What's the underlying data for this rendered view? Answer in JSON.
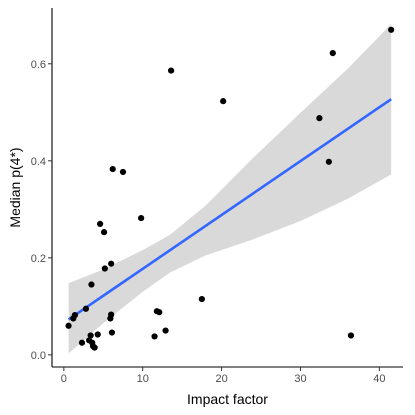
{
  "chart_data": {
    "type": "scatter",
    "title": "",
    "xlabel": "Impact factor",
    "ylabel": "Median p(4*)",
    "xlim": [
      -1.5,
      43
    ],
    "ylim": [
      -0.025,
      0.715
    ],
    "x_ticks": [
      0,
      10,
      20,
      30,
      40
    ],
    "x_tick_labels": [
      "0",
      "10",
      "20",
      "30",
      "40"
    ],
    "y_ticks": [
      0.0,
      0.2,
      0.4,
      0.6
    ],
    "y_tick_labels": [
      "0.0",
      "0.2",
      "0.4",
      "0.6"
    ],
    "grid": false,
    "legend": "none",
    "points": [
      {
        "x": 0.6,
        "y": 0.06
      },
      {
        "x": 1.2,
        "y": 0.075
      },
      {
        "x": 1.4,
        "y": 0.082
      },
      {
        "x": 2.3,
        "y": 0.025
      },
      {
        "x": 2.8,
        "y": 0.095
      },
      {
        "x": 3.2,
        "y": 0.03
      },
      {
        "x": 3.4,
        "y": 0.04
      },
      {
        "x": 3.5,
        "y": 0.145
      },
      {
        "x": 3.6,
        "y": 0.025
      },
      {
        "x": 3.7,
        "y": 0.018
      },
      {
        "x": 3.9,
        "y": 0.015
      },
      {
        "x": 4.3,
        "y": 0.042
      },
      {
        "x": 4.6,
        "y": 0.27
      },
      {
        "x": 5.1,
        "y": 0.253
      },
      {
        "x": 5.2,
        "y": 0.178
      },
      {
        "x": 5.9,
        "y": 0.075
      },
      {
        "x": 6.0,
        "y": 0.083
      },
      {
        "x": 6.0,
        "y": 0.188
      },
      {
        "x": 6.1,
        "y": 0.046
      },
      {
        "x": 6.2,
        "y": 0.383
      },
      {
        "x": 7.5,
        "y": 0.377
      },
      {
        "x": 9.8,
        "y": 0.282
      },
      {
        "x": 11.5,
        "y": 0.038
      },
      {
        "x": 11.8,
        "y": 0.09
      },
      {
        "x": 12.1,
        "y": 0.088
      },
      {
        "x": 12.9,
        "y": 0.05
      },
      {
        "x": 13.6,
        "y": 0.586
      },
      {
        "x": 17.5,
        "y": 0.115
      },
      {
        "x": 20.2,
        "y": 0.523
      },
      {
        "x": 32.4,
        "y": 0.488
      },
      {
        "x": 33.6,
        "y": 0.398
      },
      {
        "x": 34.1,
        "y": 0.622
      },
      {
        "x": 36.4,
        "y": 0.04
      },
      {
        "x": 41.5,
        "y": 0.67
      }
    ],
    "fit": {
      "method": "linear",
      "color": "#3366FF",
      "ribbon_color": "#D9D9D9",
      "x_range": [
        0.6,
        41.5
      ],
      "line": [
        {
          "x": 0.6,
          "y": 0.073
        },
        {
          "x": 41.5,
          "y": 0.527
        }
      ],
      "ribbon": [
        {
          "x": 0.6,
          "lower": 0.003,
          "upper": 0.148
        },
        {
          "x": 5,
          "lower": 0.065,
          "upper": 0.176
        },
        {
          "x": 10,
          "lower": 0.13,
          "upper": 0.216
        },
        {
          "x": 13.5,
          "lower": 0.17,
          "upper": 0.248
        },
        {
          "x": 18,
          "lower": 0.205,
          "upper": 0.308
        },
        {
          "x": 24,
          "lower": 0.238,
          "upper": 0.406
        },
        {
          "x": 30,
          "lower": 0.276,
          "upper": 0.499
        },
        {
          "x": 36,
          "lower": 0.322,
          "upper": 0.59
        },
        {
          "x": 41.5,
          "lower": 0.372,
          "upper": 0.682
        }
      ]
    }
  }
}
